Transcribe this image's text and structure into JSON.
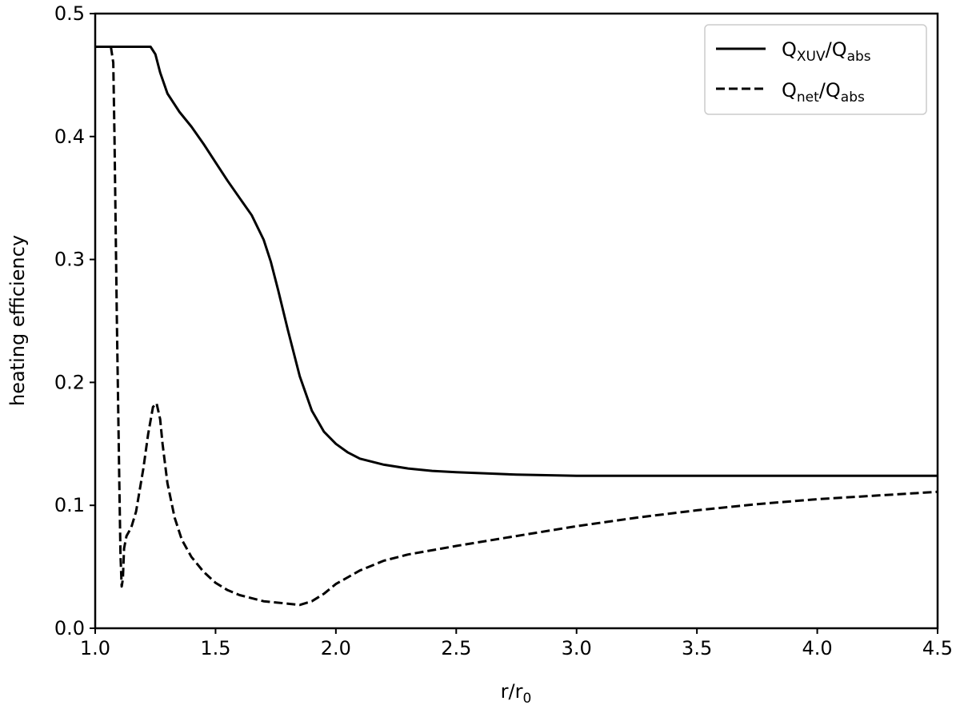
{
  "chart_data": {
    "type": "line",
    "xlabel": {
      "base": "r/r",
      "sub": "0"
    },
    "ylabel": "heating efficiency",
    "xlim": [
      1.0,
      4.5
    ],
    "ylim": [
      0.0,
      0.5
    ],
    "xticks": [
      "1.0",
      "1.5",
      "2.0",
      "2.5",
      "3.0",
      "3.5",
      "4.0",
      "4.5"
    ],
    "yticks": [
      "0.0",
      "0.1",
      "0.2",
      "0.3",
      "0.4",
      "0.5"
    ],
    "grid": false,
    "legend_position": "top-right",
    "series": [
      {
        "name": "Q_XUV/Q_abs",
        "legend": {
          "a": "Q",
          "a_sub": "XUV",
          "b": "/Q",
          "b_sub": "abs"
        },
        "style": "solid",
        "x": [
          1.0,
          1.05,
          1.1,
          1.15,
          1.2,
          1.23,
          1.25,
          1.27,
          1.3,
          1.35,
          1.4,
          1.45,
          1.5,
          1.55,
          1.6,
          1.65,
          1.7,
          1.73,
          1.76,
          1.8,
          1.85,
          1.9,
          1.95,
          2.0,
          2.05,
          2.1,
          2.2,
          2.3,
          2.4,
          2.5,
          2.75,
          3.0,
          3.5,
          4.0,
          4.5
        ],
        "y": [
          0.473,
          0.473,
          0.473,
          0.473,
          0.473,
          0.473,
          0.467,
          0.452,
          0.435,
          0.42,
          0.408,
          0.394,
          0.379,
          0.364,
          0.35,
          0.336,
          0.316,
          0.298,
          0.275,
          0.243,
          0.205,
          0.177,
          0.16,
          0.15,
          0.143,
          0.138,
          0.133,
          0.13,
          0.128,
          0.127,
          0.125,
          0.124,
          0.124,
          0.124,
          0.124
        ]
      },
      {
        "name": "Q_net/Q_abs",
        "legend": {
          "a": "Q",
          "a_sub": "net",
          "b": "/Q",
          "b_sub": "abs"
        },
        "style": "dashed",
        "x": [
          1.065,
          1.075,
          1.08,
          1.09,
          1.1,
          1.105,
          1.11,
          1.115,
          1.12,
          1.13,
          1.15,
          1.17,
          1.2,
          1.22,
          1.24,
          1.255,
          1.27,
          1.28,
          1.3,
          1.33,
          1.36,
          1.4,
          1.45,
          1.5,
          1.55,
          1.6,
          1.7,
          1.8,
          1.85,
          1.9,
          1.95,
          2.0,
          2.1,
          2.2,
          2.3,
          2.5,
          2.75,
          3.0,
          3.25,
          3.5,
          3.75,
          4.0,
          4.25,
          4.5
        ],
        "y": [
          0.473,
          0.46,
          0.4,
          0.25,
          0.12,
          0.06,
          0.034,
          0.04,
          0.065,
          0.075,
          0.082,
          0.095,
          0.13,
          0.158,
          0.18,
          0.183,
          0.17,
          0.15,
          0.118,
          0.09,
          0.072,
          0.058,
          0.046,
          0.037,
          0.031,
          0.027,
          0.022,
          0.02,
          0.019,
          0.022,
          0.028,
          0.036,
          0.047,
          0.055,
          0.06,
          0.067,
          0.075,
          0.083,
          0.09,
          0.096,
          0.101,
          0.105,
          0.108,
          0.111
        ]
      }
    ]
  }
}
